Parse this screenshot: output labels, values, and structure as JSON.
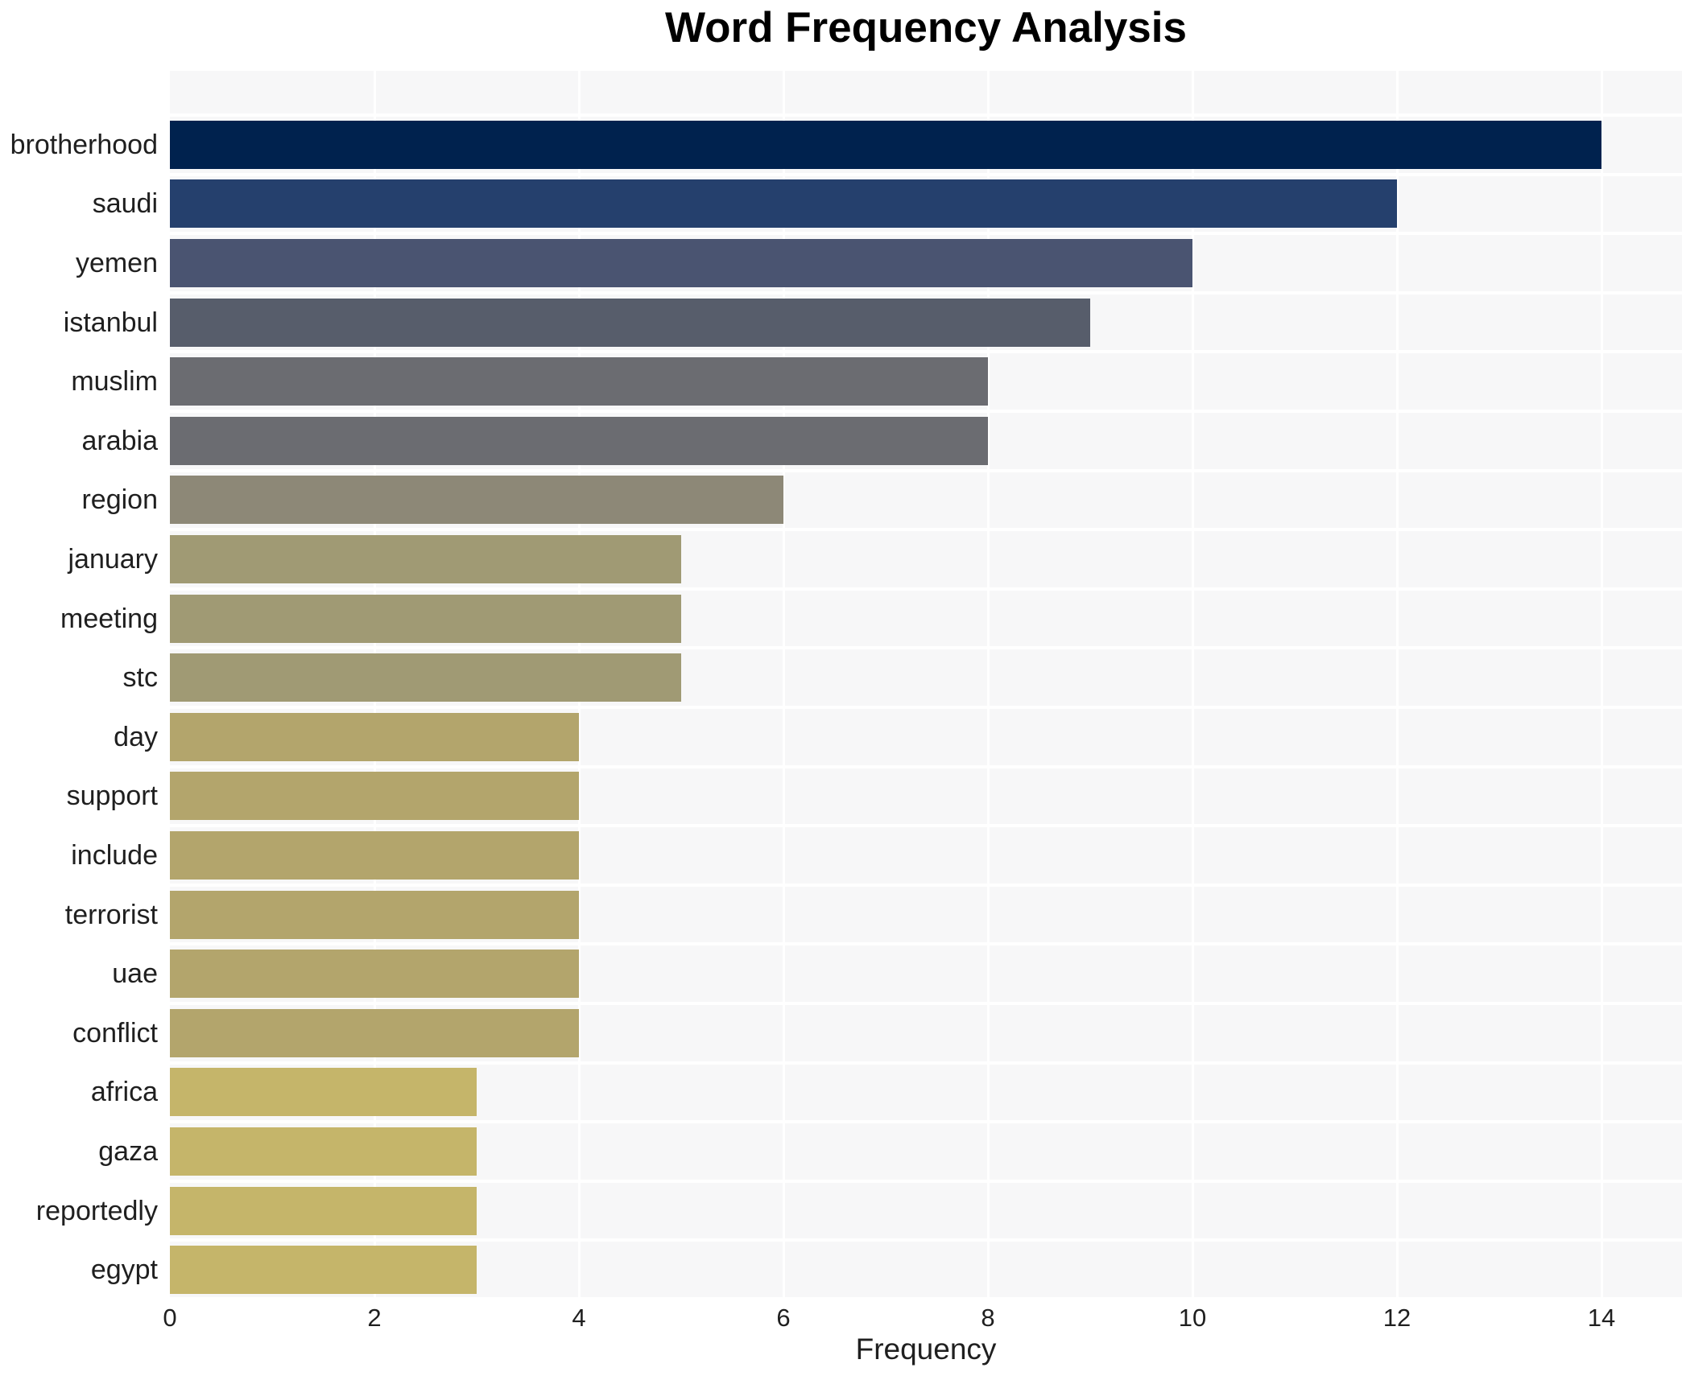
{
  "title": "Word Frequency Analysis",
  "colors": {
    "figure_bg": "#ffffff",
    "plot_bg": "#f7f7f8",
    "grid": "#ffffff",
    "text": "#1f1f1f",
    "title_text": "#000000"
  },
  "chart_data": {
    "type": "bar",
    "orientation": "horizontal",
    "title": "Word Frequency Analysis",
    "xlabel": "Frequency",
    "ylabel": "",
    "legend_position": "none",
    "grid": true,
    "xlim": [
      0,
      14.8
    ],
    "x_ticks": [
      0,
      2,
      4,
      6,
      8,
      10,
      12,
      14
    ],
    "categories": [
      "brotherhood",
      "saudi",
      "yemen",
      "istanbul",
      "muslim",
      "arabia",
      "region",
      "january",
      "meeting",
      "stc",
      "day",
      "support",
      "include",
      "terrorist",
      "uae",
      "conflict",
      "africa",
      "gaza",
      "reportedly",
      "egypt"
    ],
    "values": [
      14,
      12,
      10,
      9,
      8,
      8,
      6,
      5,
      5,
      5,
      4,
      4,
      4,
      4,
      4,
      4,
      3,
      3,
      3,
      3
    ],
    "bar_colors": [
      "#00224e",
      "#25406d",
      "#4a5471",
      "#575d6b",
      "#6b6c71",
      "#6b6c71",
      "#8d8877",
      "#a09a74",
      "#a09a74",
      "#a09a74",
      "#b3a56c",
      "#b3a56c",
      "#b3a56c",
      "#b3a56c",
      "#b3a56c",
      "#b3a56c",
      "#c5b56a",
      "#c5b56a",
      "#c5b56a",
      "#c5b56a"
    ]
  }
}
